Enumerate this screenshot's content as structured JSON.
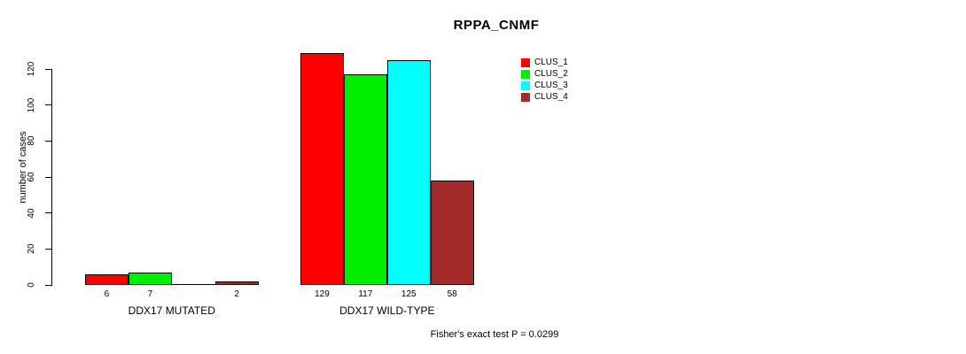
{
  "chart_data": {
    "type": "bar",
    "title": "RPPA_CNMF",
    "ylabel": "number of cases",
    "xlabel": "",
    "categories": [
      "DDX17 MUTATED",
      "DDX17 WILD-TYPE"
    ],
    "series": [
      {
        "name": "CLUS_1",
        "color": "#FF0000",
        "values": [
          6,
          129
        ]
      },
      {
        "name": "CLUS_2",
        "color": "#00EE00",
        "values": [
          7,
          117
        ]
      },
      {
        "name": "CLUS_3",
        "color": "#00FFFF",
        "values": [
          0,
          125
        ]
      },
      {
        "name": "CLUS_4",
        "color": "#A52A2A",
        "values": [
          2,
          58
        ]
      }
    ],
    "bar_value_labels": [
      [
        "6",
        "7",
        "",
        "2"
      ],
      [
        "129",
        "117",
        "125",
        "58"
      ]
    ],
    "yticks": [
      0,
      20,
      40,
      60,
      80,
      100,
      120
    ],
    "ylim": [
      0,
      129
    ],
    "grid": false,
    "legend_position": "top-right",
    "annotation": "Fisher's exact test P = 0.0299"
  },
  "colors": {
    "axis": "#000000",
    "bar_border": "#000000",
    "text": "#000000",
    "background": "#FFFFFF"
  }
}
